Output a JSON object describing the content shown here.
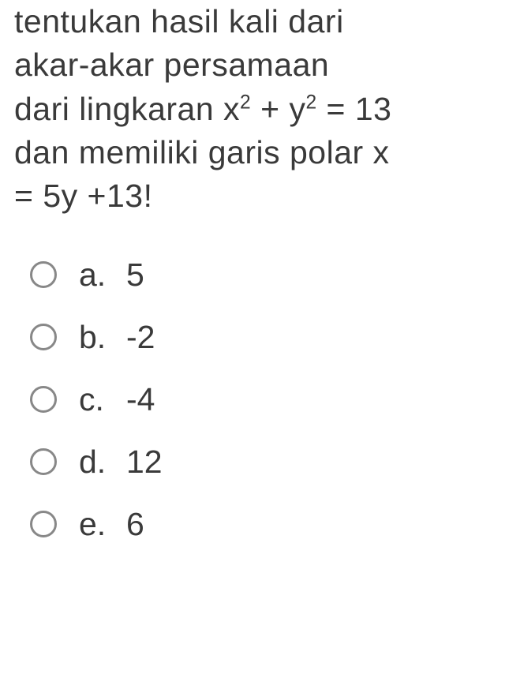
{
  "question": {
    "line1": "tentukan hasil kali dari",
    "line2": "akar-akar persamaan",
    "line3_pre": "dari lingkaran x",
    "line3_sup1": "2",
    "line3_mid": " + y",
    "line3_sup2": "2",
    "line3_post": " = 13",
    "line4": "dan memiliki garis polar x",
    "line5": "= 5y +13!"
  },
  "options": [
    {
      "letter": "a.",
      "value": "5"
    },
    {
      "letter": "b.",
      "value": "-2"
    },
    {
      "letter": "c.",
      "value": "-4"
    },
    {
      "letter": "d.",
      "value": "12"
    },
    {
      "letter": "e.",
      "value": "6"
    }
  ],
  "colors": {
    "text": "#3a3a3a",
    "radio_border": "#888888",
    "background": "#ffffff"
  },
  "typography": {
    "question_fontsize": 41,
    "option_fontsize": 41,
    "font_weight": 400
  }
}
